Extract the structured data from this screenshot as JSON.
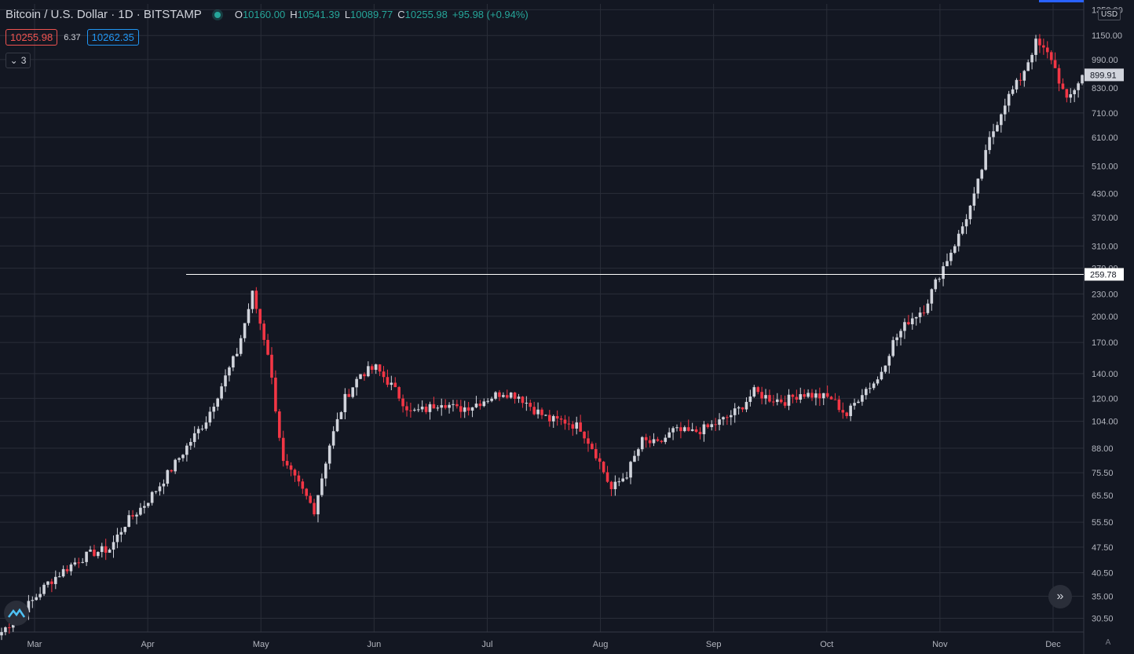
{
  "header": {
    "symbol": "Bitcoin / U.S. Dollar",
    "interval": "1D",
    "exchange": "BITSTAMP",
    "open_label": "O",
    "open": "10160.00",
    "high_label": "H",
    "high": "10541.39",
    "low_label": "L",
    "low": "10089.77",
    "close_label": "C",
    "close": "10255.98",
    "change": "+95.98 (+0.94%)"
  },
  "quote": {
    "bid": "10255.98",
    "spread": "6.37",
    "ask": "10262.35"
  },
  "indicators_toggle": {
    "count": "3"
  },
  "currency": "USD",
  "colors": {
    "background": "#131722",
    "grid": "#2a2e39",
    "up": "#d1d4dc",
    "down": "#f23645",
    "accent": "#26a69a",
    "line": "#ffffff"
  },
  "icons": [
    "chevron-down-icon",
    "double-chevron-right-icon",
    "tradingview-logo-icon"
  ],
  "chart_data": {
    "type": "candlestick",
    "scale": "log",
    "y_ticks": [
      "1350.00",
      "1150.00",
      "990.00",
      "830.00",
      "710.00",
      "610.00",
      "510.00",
      "430.00",
      "370.00",
      "310.00",
      "270.00",
      "230.00",
      "200.00",
      "170.00",
      "140.00",
      "120.00",
      "104.00",
      "88.00",
      "75.50",
      "65.50",
      "55.50",
      "47.50",
      "40.50",
      "35.00",
      "30.50"
    ],
    "x_ticks": [
      "Mar",
      "Apr",
      "May",
      "Jun",
      "Jul",
      "Aug",
      "Sep",
      "Oct",
      "Nov",
      "Dec"
    ],
    "horizontal_line_value": "259.78",
    "last_price_label": "899.91",
    "ylim": [
      28,
      1400
    ],
    "close_path": [
      [
        "Mar",
        28
      ],
      [
        "Mar",
        31
      ],
      [
        "Mar",
        34
      ],
      [
        "Mar",
        38
      ],
      [
        "Mar",
        41
      ],
      [
        "Mar",
        44
      ],
      [
        "Mar",
        46
      ],
      [
        "Mar",
        47
      ],
      [
        "Apr",
        55
      ],
      [
        "Apr",
        62
      ],
      [
        "Apr",
        70
      ],
      [
        "Apr",
        80
      ],
      [
        "Apr",
        92
      ],
      [
        "Apr",
        105
      ],
      [
        "Apr",
        130
      ],
      [
        "Apr",
        160
      ],
      [
        "Apr",
        230
      ],
      [
        "Apr",
        160
      ],
      [
        "Apr",
        80
      ],
      [
        "Apr",
        70
      ],
      [
        "Apr",
        60
      ],
      [
        "Apr",
        90
      ],
      [
        "Apr",
        120
      ],
      [
        "Apr",
        140
      ],
      [
        "Apr",
        145
      ],
      [
        "May",
        130
      ],
      [
        "May",
        110
      ],
      [
        "May",
        112
      ],
      [
        "May",
        118
      ],
      [
        "May",
        112
      ],
      [
        "May",
        115
      ],
      [
        "May",
        120
      ],
      [
        "Jun",
        125
      ],
      [
        "Jun",
        122
      ],
      [
        "Jun",
        112
      ],
      [
        "Jun",
        105
      ],
      [
        "Jun",
        104
      ],
      [
        "Jun",
        100
      ],
      [
        "Jul",
        85
      ],
      [
        "Jul",
        68
      ],
      [
        "Jul",
        75
      ],
      [
        "Jul",
        92
      ],
      [
        "Jul",
        90
      ],
      [
        "Aug",
        98
      ],
      [
        "Aug",
        97
      ],
      [
        "Aug",
        100
      ],
      [
        "Aug",
        105
      ],
      [
        "Aug",
        112
      ],
      [
        "Sep",
        125
      ],
      [
        "Sep",
        120
      ],
      [
        "Sep",
        118
      ],
      [
        "Sep",
        124
      ],
      [
        "Sep",
        122
      ],
      [
        "Oct",
        120
      ],
      [
        "Oct",
        108
      ],
      [
        "Oct",
        125
      ],
      [
        "Oct",
        135
      ],
      [
        "Oct",
        170
      ],
      [
        "Oct",
        195
      ],
      [
        "Nov",
        210
      ],
      [
        "Nov",
        260
      ],
      [
        "Nov",
        330
      ],
      [
        "Nov",
        420
      ],
      [
        "Nov",
        600
      ],
      [
        "Nov",
        760
      ],
      [
        "Nov",
        880
      ],
      [
        "Dec",
        1100
      ],
      [
        "Dec",
        1000
      ],
      [
        "Dec",
        760
      ],
      [
        "Dec",
        899
      ]
    ]
  }
}
